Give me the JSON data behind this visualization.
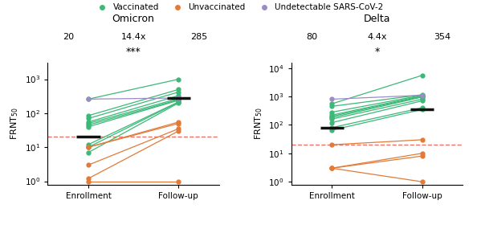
{
  "omicron": {
    "title": "Omicron",
    "median_enroll": 20,
    "median_followup": 285,
    "fold_change": "14.4x",
    "significance": "***",
    "vaccinated_pairs": [
      [
        260,
        1000
      ],
      [
        85,
        500
      ],
      [
        70,
        420
      ],
      [
        55,
        330
      ],
      [
        50,
        270
      ],
      [
        45,
        250
      ],
      [
        40,
        240
      ],
      [
        12,
        215
      ],
      [
        10,
        210
      ],
      [
        7,
        200
      ]
    ],
    "unvaccinated_pairs": [
      [
        10,
        55
      ],
      [
        10,
        50
      ],
      [
        3,
        35
      ],
      [
        1.2,
        30
      ],
      [
        1,
        1
      ]
    ],
    "undetectable_pairs": [
      [
        260,
        280
      ]
    ],
    "median_bar_enroll": 20,
    "median_bar_followup": 285,
    "dotted_line": 20,
    "ylim": [
      0.8,
      3000
    ],
    "yticks": [
      1,
      10,
      100,
      1000
    ]
  },
  "delta": {
    "title": "Delta",
    "median_enroll": 80,
    "median_followup": 354,
    "fold_change": "4.4x",
    "significance": "*",
    "vaccinated_pairs": [
      [
        550,
        5500
      ],
      [
        450,
        1150
      ],
      [
        280,
        1100
      ],
      [
        220,
        1050
      ],
      [
        200,
        1000
      ],
      [
        180,
        950
      ],
      [
        160,
        800
      ],
      [
        120,
        700
      ],
      [
        80,
        400
      ],
      [
        65,
        350
      ]
    ],
    "unvaccinated_pairs": [
      [
        20,
        30
      ],
      [
        3,
        10
      ],
      [
        3,
        8
      ],
      [
        3,
        1
      ]
    ],
    "undetectable_pairs": [
      [
        800,
        1100
      ]
    ],
    "median_bar_enroll": 80,
    "median_bar_followup": 354,
    "dotted_line": 20,
    "ylim": [
      0.8,
      15000
    ],
    "yticks": [
      1,
      10,
      100,
      1000,
      10000
    ]
  },
  "vaccinated_color": "#3cb878",
  "unvaccinated_color": "#e07b39",
  "undetectable_color": "#9b8cc4",
  "dotted_color": "#e8736a",
  "median_bar_color": "#111111",
  "bg_color": "#ffffff",
  "legend_labels": [
    "Vaccinated",
    "Unvaccinated",
    "Undetectable SARS-CoV-2"
  ]
}
